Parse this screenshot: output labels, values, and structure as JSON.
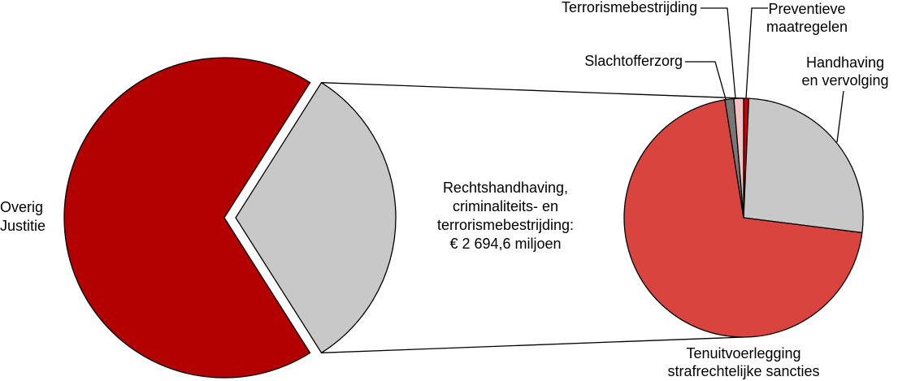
{
  "chart_data": [
    {
      "type": "pie",
      "categories": [
        "Overig\nJustitie",
        "Rechtshandhaving,\ncriminaliteits- en\nterrorismebestrijding:\n€ 2 694,6 miljoen"
      ],
      "values": [
        68,
        32
      ],
      "colors": [
        "#b30000",
        "#c8c8c8"
      ]
    },
    {
      "type": "pie",
      "categories": [
        "Preventieve\nmaatregelen",
        "Handhaving\nen vervolging",
        "Tenuitvoerlegging\nstrafrechtelijke sancties",
        "Slachtofferzorg",
        "Terrorismebestrijding"
      ],
      "values": [
        0.7,
        26.3,
        70.5,
        1.2,
        1.3
      ],
      "colors": [
        "#cc0000",
        "#c8c8c8",
        "#d9443e",
        "#777777",
        "#f4c2c2"
      ]
    }
  ]
}
